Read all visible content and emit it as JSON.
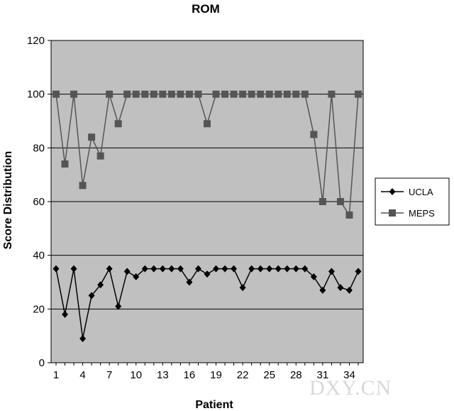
{
  "chart_data": {
    "type": "line",
    "title": "ROM",
    "xlabel": "Patient",
    "ylabel": "Score Distribution",
    "x": [
      1,
      2,
      3,
      4,
      5,
      6,
      7,
      8,
      9,
      10,
      11,
      12,
      13,
      14,
      15,
      16,
      17,
      18,
      19,
      20,
      21,
      22,
      23,
      24,
      25,
      26,
      27,
      28,
      29,
      30,
      31,
      32,
      33,
      34,
      35
    ],
    "xticks": [
      1,
      4,
      7,
      10,
      13,
      16,
      19,
      22,
      25,
      28,
      31,
      34
    ],
    "ylim": [
      0,
      120
    ],
    "yticks": [
      0,
      20,
      40,
      60,
      80,
      100,
      120
    ],
    "grid": "horizontal",
    "legend": "right",
    "series": [
      {
        "name": "UCLA",
        "marker": "diamond",
        "color": "#000000",
        "values": [
          35,
          18,
          35,
          9,
          25,
          29,
          35,
          21,
          34,
          32,
          35,
          35,
          35,
          35,
          35,
          30,
          35,
          33,
          35,
          35,
          35,
          28,
          35,
          35,
          35,
          35,
          35,
          35,
          35,
          32,
          27,
          34,
          28,
          27,
          34
        ]
      },
      {
        "name": "MEPS",
        "marker": "square",
        "color": "#555555",
        "values": [
          100,
          74,
          100,
          66,
          84,
          77,
          100,
          89,
          100,
          100,
          100,
          100,
          100,
          100,
          100,
          100,
          100,
          89,
          100,
          100,
          100,
          100,
          100,
          100,
          100,
          100,
          100,
          100,
          100,
          85,
          60,
          100,
          60,
          55,
          100
        ]
      }
    ],
    "plot_background": "#c0c0c0",
    "watermark": "DXY.CN"
  }
}
